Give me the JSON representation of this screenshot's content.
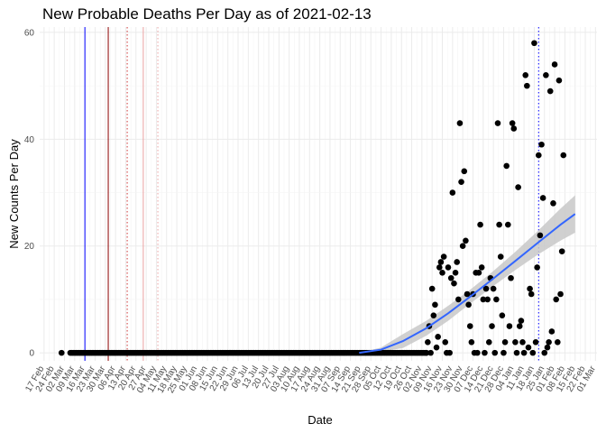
{
  "chart_data": {
    "type": "scatter",
    "title": "New Probable Deaths Per Day as of 2021-02-13",
    "xlabel": "Date",
    "ylabel": "New Counts Per Day",
    "ylim": [
      -1.5,
      61
    ],
    "yticks": [
      0,
      20,
      40,
      60
    ],
    "xlim": [
      "2020-02-14",
      "2021-03-02"
    ],
    "grid": true,
    "legend": "none",
    "x_tick_dates": [
      "2020-02-17",
      "2020-02-24",
      "2020-03-02",
      "2020-03-09",
      "2020-03-16",
      "2020-03-23",
      "2020-03-30",
      "2020-04-06",
      "2020-04-13",
      "2020-04-20",
      "2020-04-27",
      "2020-05-04",
      "2020-05-11",
      "2020-05-18",
      "2020-05-25",
      "2020-06-01",
      "2020-06-08",
      "2020-06-15",
      "2020-06-22",
      "2020-06-29",
      "2020-07-06",
      "2020-07-13",
      "2020-07-20",
      "2020-07-27",
      "2020-08-03",
      "2020-08-10",
      "2020-08-17",
      "2020-08-24",
      "2020-08-31",
      "2020-09-07",
      "2020-09-14",
      "2020-09-21",
      "2020-09-28",
      "2020-10-05",
      "2020-10-12",
      "2020-10-19",
      "2020-10-26",
      "2020-11-02",
      "2020-11-09",
      "2020-11-16",
      "2020-11-23",
      "2020-11-30",
      "2020-12-07",
      "2020-12-14",
      "2020-12-21",
      "2020-12-28",
      "2021-01-04",
      "2021-01-11",
      "2021-01-18",
      "2021-01-25",
      "2021-02-01",
      "2021-02-08",
      "2021-02-15",
      "2021-02-22",
      "2021-03-01"
    ],
    "x_tick_labels": [
      "17 Feb",
      "24 Feb",
      "02 Mar",
      "09 Mar",
      "16 Mar",
      "23 Mar",
      "30 Mar",
      "06 Apr",
      "13 Apr",
      "20 Apr",
      "27 Apr",
      "04 May",
      "11 May",
      "18 May",
      "25 May",
      "01 Jun",
      "08 Jun",
      "15 Jun",
      "22 Jun",
      "29 Jun",
      "06 Jul",
      "13 Jul",
      "20 Jul",
      "27 Jul",
      "03 Aug",
      "10 Aug",
      "17 Aug",
      "24 Aug",
      "31 Aug",
      "07 Sep",
      "14 Sep",
      "21 Sep",
      "28 Sep",
      "05 Oct",
      "12 Oct",
      "19 Oct",
      "26 Oct",
      "02 Nov",
      "09 Nov",
      "16 Nov",
      "23 Nov",
      "30 Nov",
      "07 Dec",
      "14 Dec",
      "21 Dec",
      "28 Dec",
      "04 Jan",
      "11 Jan",
      "18 Jan",
      "25 Jan",
      "01 Feb",
      "08 Feb",
      "15 Feb",
      "22 Feb",
      "01 Mar"
    ],
    "zero_span": {
      "start": "2020-03-06",
      "end": "2020-11-05",
      "value": 0
    },
    "first_point": {
      "date": "2020-02-29",
      "value": 0
    },
    "reference_lines": [
      {
        "date": "2020-03-16",
        "color": "#0000ff",
        "style": "solid"
      },
      {
        "date": "2020-04-01",
        "color": "#8b0000",
        "style": "solid"
      },
      {
        "date": "2020-04-14",
        "color": "#cd3333",
        "style": "dotted"
      },
      {
        "date": "2020-04-25",
        "color": "#e9a0a0",
        "style": "solid"
      },
      {
        "date": "2020-05-05",
        "color": "#e9a0a0",
        "style": "dotted"
      },
      {
        "date": "2021-01-21",
        "color": "#0000ff",
        "style": "dotted"
      }
    ],
    "smooth": {
      "color": "#3366ff",
      "ribbon_color": "#c8c8c8",
      "x": [
        "2020-09-20",
        "2020-10-05",
        "2020-10-20",
        "2020-11-05",
        "2020-11-20",
        "2020-12-05",
        "2020-12-20",
        "2021-01-05",
        "2021-01-20",
        "2021-02-05",
        "2021-02-15"
      ],
      "fit": [
        0,
        0.6,
        2.2,
        4.6,
        7.4,
        10.5,
        13.7,
        17.2,
        20.5,
        24.0,
        26.0
      ],
      "lower": [
        0,
        0.2,
        0.9,
        3.2,
        6.0,
        9.2,
        12.3,
        15.5,
        18.3,
        21.0,
        22.5
      ],
      "upper": [
        0,
        1.0,
        3.5,
        6.0,
        8.8,
        11.8,
        15.1,
        18.9,
        22.7,
        27.0,
        29.5
      ]
    },
    "points": [
      [
        "2020-11-05",
        0
      ],
      [
        "2020-11-06",
        2
      ],
      [
        "2020-11-07",
        5
      ],
      [
        "2020-11-08",
        0
      ],
      [
        "2020-11-09",
        12
      ],
      [
        "2020-11-10",
        7
      ],
      [
        "2020-11-11",
        9
      ],
      [
        "2020-11-12",
        1
      ],
      [
        "2020-11-13",
        3
      ],
      [
        "2020-11-14",
        16
      ],
      [
        "2020-11-15",
        17
      ],
      [
        "2020-11-16",
        15
      ],
      [
        "2020-11-17",
        18
      ],
      [
        "2020-11-18",
        2
      ],
      [
        "2020-11-19",
        0
      ],
      [
        "2020-11-20",
        16
      ],
      [
        "2020-11-21",
        0
      ],
      [
        "2020-11-22",
        14
      ],
      [
        "2020-11-23",
        30
      ],
      [
        "2020-11-24",
        13
      ],
      [
        "2020-11-25",
        15
      ],
      [
        "2020-11-26",
        17
      ],
      [
        "2020-11-27",
        10
      ],
      [
        "2020-11-28",
        43
      ],
      [
        "2020-11-29",
        32
      ],
      [
        "2020-11-30",
        20
      ],
      [
        "2020-12-01",
        34
      ],
      [
        "2020-12-02",
        21
      ],
      [
        "2020-12-03",
        11
      ],
      [
        "2020-12-04",
        9
      ],
      [
        "2020-12-05",
        5
      ],
      [
        "2020-12-06",
        2
      ],
      [
        "2020-12-07",
        11
      ],
      [
        "2020-12-08",
        0
      ],
      [
        "2020-12-09",
        15
      ],
      [
        "2020-12-10",
        0
      ],
      [
        "2020-12-11",
        15
      ],
      [
        "2020-12-12",
        24
      ],
      [
        "2020-12-13",
        16
      ],
      [
        "2020-12-14",
        10
      ],
      [
        "2020-12-15",
        0
      ],
      [
        "2020-12-16",
        12
      ],
      [
        "2020-12-17",
        10
      ],
      [
        "2020-12-18",
        2
      ],
      [
        "2020-12-19",
        14
      ],
      [
        "2020-12-20",
        5
      ],
      [
        "2020-12-21",
        12
      ],
      [
        "2020-12-22",
        0
      ],
      [
        "2020-12-23",
        10
      ],
      [
        "2020-12-24",
        43
      ],
      [
        "2020-12-25",
        24
      ],
      [
        "2020-12-26",
        18
      ],
      [
        "2020-12-27",
        7
      ],
      [
        "2020-12-28",
        0
      ],
      [
        "2020-12-29",
        2
      ],
      [
        "2020-12-30",
        35
      ],
      [
        "2020-12-31",
        24
      ],
      [
        "2021-01-01",
        5
      ],
      [
        "2021-01-02",
        14
      ],
      [
        "2021-01-03",
        43
      ],
      [
        "2021-01-04",
        42
      ],
      [
        "2021-01-05",
        2
      ],
      [
        "2021-01-06",
        0
      ],
      [
        "2021-01-07",
        31
      ],
      [
        "2021-01-08",
        5
      ],
      [
        "2021-01-09",
        6
      ],
      [
        "2021-01-10",
        2
      ],
      [
        "2021-01-11",
        0
      ],
      [
        "2021-01-12",
        52
      ],
      [
        "2021-01-13",
        50
      ],
      [
        "2021-01-14",
        1
      ],
      [
        "2021-01-15",
        12
      ],
      [
        "2021-01-16",
        11
      ],
      [
        "2021-01-17",
        0
      ],
      [
        "2021-01-18",
        58
      ],
      [
        "2021-01-19",
        2
      ],
      [
        "2021-01-20",
        16
      ],
      [
        "2021-01-21",
        37
      ],
      [
        "2021-01-22",
        22
      ],
      [
        "2021-01-23",
        39
      ],
      [
        "2021-01-24",
        29
      ],
      [
        "2021-01-25",
        0
      ],
      [
        "2021-01-26",
        52
      ],
      [
        "2021-01-27",
        1
      ],
      [
        "2021-01-28",
        2
      ],
      [
        "2021-01-29",
        49
      ],
      [
        "2021-01-30",
        4
      ],
      [
        "2021-01-31",
        28
      ],
      [
        "2021-02-01",
        54
      ],
      [
        "2021-02-02",
        10
      ],
      [
        "2021-02-03",
        2
      ],
      [
        "2021-02-04",
        51
      ],
      [
        "2021-02-05",
        11
      ],
      [
        "2021-02-06",
        19
      ],
      [
        "2021-02-07",
        37
      ]
    ]
  }
}
